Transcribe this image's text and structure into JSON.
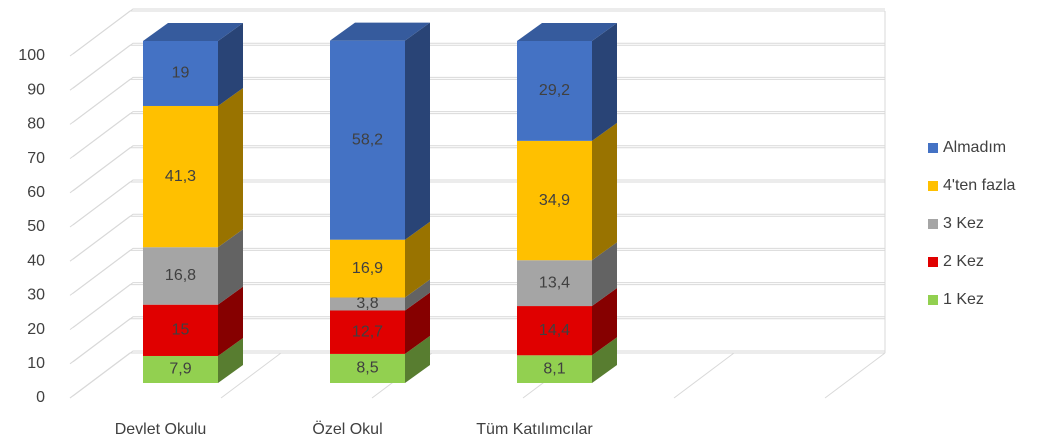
{
  "chart_data": {
    "type": "bar",
    "stacked": true,
    "three_d": true,
    "categories": [
      "Devlet Okulu",
      "Özel Okul",
      "Tüm Katılımcılar"
    ],
    "series": [
      {
        "name": "1 Kez",
        "color": "#92d050",
        "values": [
          7.9,
          8.5,
          8.1
        ],
        "value_labels": [
          "7,9",
          "8,5",
          "8,1"
        ]
      },
      {
        "name": "2 Kez",
        "color": "#e00000",
        "values": [
          15,
          12.7,
          14.4
        ],
        "value_labels": [
          "15",
          "12,7",
          "14,4"
        ]
      },
      {
        "name": "3 Kez",
        "color": "#a5a5a5",
        "values": [
          16.8,
          3.8,
          13.4
        ],
        "value_labels": [
          "16,8",
          "3,8",
          "13,4"
        ]
      },
      {
        "name": "4'ten fazla",
        "color": "#ffc000",
        "values": [
          41.3,
          16.9,
          34.9
        ],
        "value_labels": [
          "41,3",
          "16,9",
          "34,9"
        ]
      },
      {
        "name": "Almadım",
        "color": "#4472c4",
        "values": [
          19,
          58.2,
          29.2
        ],
        "value_labels": [
          "19",
          "58,2",
          "29,2"
        ]
      }
    ],
    "ylim": [
      0,
      100
    ],
    "yticks": [
      0,
      10,
      20,
      30,
      40,
      50,
      60,
      70,
      80,
      90,
      100
    ],
    "grid": true,
    "legend": "right"
  }
}
